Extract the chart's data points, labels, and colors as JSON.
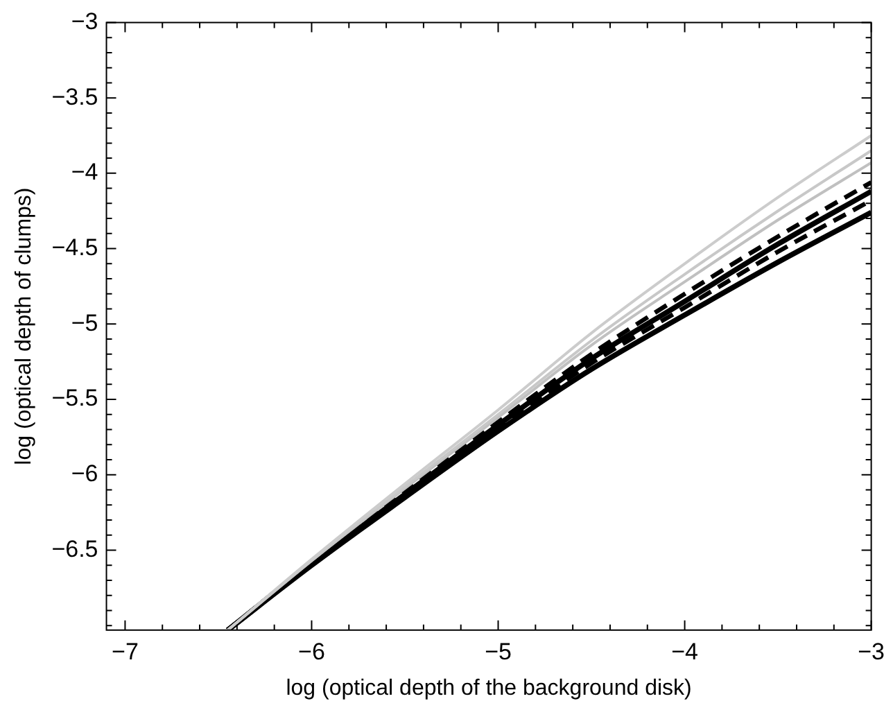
{
  "chart_data": {
    "type": "line",
    "xlabel": "log (optical depth of the background disk)",
    "ylabel": "log (optical depth of clumps)",
    "x": [
      -6.45,
      -6,
      -5.5,
      -5,
      -4.5,
      -4,
      -3.5,
      -3
    ],
    "series": [
      {
        "color": "#cccccc",
        "line_style": "solid",
        "values": [
          -7.03,
          -6.56,
          -6.06,
          -5.57,
          -5.06,
          -4.6,
          -4.16,
          -3.75
        ]
      },
      {
        "color": "#c8c8c8",
        "line_style": "solid",
        "values": [
          -7.03,
          -6.57,
          -6.08,
          -5.6,
          -5.11,
          -4.67,
          -4.25,
          -3.85
        ]
      },
      {
        "color": "#c0c0c0",
        "line_style": "solid",
        "values": [
          -7.03,
          -6.57,
          -6.09,
          -5.62,
          -5.14,
          -4.72,
          -4.31,
          -3.93
        ]
      },
      {
        "color": "#000000",
        "line_style": "dashed",
        "values": [
          -7.03,
          -6.58,
          -6.11,
          -5.65,
          -5.2,
          -4.8,
          -4.42,
          -4.06
        ]
      },
      {
        "color": "#000000",
        "line_style": "solid",
        "values": [
          -7.03,
          -6.59,
          -6.13,
          -5.67,
          -5.23,
          -4.85,
          -4.47,
          -4.12
        ]
      },
      {
        "color": "#000000",
        "line_style": "dashed",
        "values": [
          -7.03,
          -6.59,
          -6.14,
          -5.69,
          -5.26,
          -4.89,
          -4.52,
          -4.18
        ]
      },
      {
        "color": "#000000",
        "line_style": "solid",
        "values": [
          -7.03,
          -6.6,
          -6.15,
          -5.71,
          -5.3,
          -4.94,
          -4.59,
          -4.26
        ]
      }
    ],
    "xlim": [
      -7.1,
      -3
    ],
    "xticks": [
      -7,
      {
        "value": -6.8,
        "label": null
      },
      {
        "value": -6.6,
        "label": null
      },
      {
        "value": -6.4,
        "label": null
      },
      {
        "value": -6.2,
        "label": null
      },
      -6,
      {
        "value": -5.8,
        "label": null
      },
      {
        "value": -5.6,
        "label": null
      },
      {
        "value": -5.4,
        "label": null
      },
      {
        "value": -5.2,
        "label": null
      },
      -5,
      {
        "value": -4.8,
        "label": null
      },
      {
        "value": -4.6,
        "label": null
      },
      {
        "value": -4.4,
        "label": null
      },
      {
        "value": -4.2,
        "label": null
      },
      -4,
      {
        "value": -3.8,
        "label": null
      },
      {
        "value": -3.6,
        "label": null
      },
      {
        "value": -3.4,
        "label": null
      },
      {
        "value": -3.2,
        "label": null
      },
      -3
    ],
    "ylim": [
      -7.03,
      -3
    ],
    "yticks": [
      {
        "value": -7,
        "label": null
      },
      {
        "value": -6.9,
        "label": null
      },
      {
        "value": -6.8,
        "label": null
      },
      {
        "value": -6.7,
        "label": null
      },
      {
        "value": -6.6,
        "label": null
      },
      -6.5,
      {
        "value": -6.4,
        "label": null
      },
      {
        "value": -6.3,
        "label": null
      },
      {
        "value": -6.2,
        "label": null
      },
      {
        "value": -6.1,
        "label": null
      },
      -6,
      {
        "value": -5.9,
        "label": null
      },
      {
        "value": -5.8,
        "label": null
      },
      {
        "value": -5.7,
        "label": null
      },
      {
        "value": -5.6,
        "label": null
      },
      -5.5,
      {
        "value": -5.4,
        "label": null
      },
      {
        "value": -5.3,
        "label": null
      },
      {
        "value": -5.2,
        "label": null
      },
      {
        "value": -5.1,
        "label": null
      },
      -5,
      {
        "value": -4.9,
        "label": null
      },
      {
        "value": -4.8,
        "label": null
      },
      {
        "value": -4.7,
        "label": null
      },
      {
        "value": -4.6,
        "label": null
      },
      -4.5,
      {
        "value": -4.4,
        "label": null
      },
      {
        "value": -4.3,
        "label": null
      },
      {
        "value": -4.2,
        "label": null
      },
      {
        "value": -4.1,
        "label": null
      },
      -4,
      {
        "value": -3.9,
        "label": null
      },
      {
        "value": -3.8,
        "label": null
      },
      {
        "value": -3.7,
        "label": null
      },
      {
        "value": -3.6,
        "label": null
      },
      -3.5,
      {
        "value": -3.4,
        "label": null
      },
      {
        "value": -3.3,
        "label": null
      },
      {
        "value": -3.2,
        "label": null
      },
      {
        "value": -3.1,
        "label": null
      },
      -3
    ],
    "marker": "none"
  }
}
